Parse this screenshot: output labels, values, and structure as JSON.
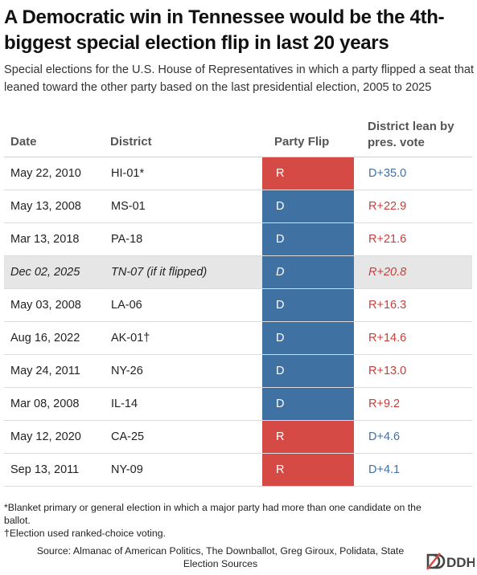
{
  "title": "A Democratic win in Tennessee would be the 4th-biggest special election flip in last 20 years",
  "subtitle": "Special elections for the U.S. House of Representatives in which a party flipped a seat that leaned toward the other party based on the last presidential election, 2005 to 2025",
  "columns": {
    "date": "Date",
    "district": "District",
    "party": "Party Flip",
    "lean": "District lean by pres. vote"
  },
  "rows": [
    {
      "date": "May 22, 2010",
      "district": "HI-01*",
      "party": "R",
      "lean": "D+35.0"
    },
    {
      "date": "May 13, 2008",
      "district": "MS-01",
      "party": "D",
      "lean": "R+22.9"
    },
    {
      "date": "Mar 13, 2018",
      "district": "PA-18",
      "party": "D",
      "lean": "R+21.6"
    },
    {
      "date": "Dec 02, 2025",
      "district": "TN-07 (if it flipped)",
      "party": "D",
      "lean": "R+20.8"
    },
    {
      "date": "May 03, 2008",
      "district": "LA-06",
      "party": "D",
      "lean": "R+16.3"
    },
    {
      "date": "Aug 16, 2022",
      "district": "AK-01†",
      "party": "D",
      "lean": "R+14.6"
    },
    {
      "date": "May 24, 2011",
      "district": "NY-26",
      "party": "D",
      "lean": "R+13.0"
    },
    {
      "date": "Mar 08, 2008",
      "district": "IL-14",
      "party": "D",
      "lean": "R+9.2"
    },
    {
      "date": "May 12, 2020",
      "district": "CA-25",
      "party": "R",
      "lean": "D+4.6"
    },
    {
      "date": "Sep 13, 2011",
      "district": "NY-09",
      "party": "R",
      "lean": "D+4.1"
    }
  ],
  "notes": [
    "*Blanket primary or general election in which a major party had more than one candidate on the ballot.",
    "†Election used ranked-choice voting."
  ],
  "source": "Source: Almanac of American Politics, The Downballot, Greg Giroux, Polidata, State Election Sources",
  "logo": {
    "text": "DDHQ",
    "icon": "ddhq-logo-icon"
  },
  "colors": {
    "republican": "#d64a45",
    "democrat": "#3f71a2",
    "highlight_row": "#e6e6e6"
  }
}
